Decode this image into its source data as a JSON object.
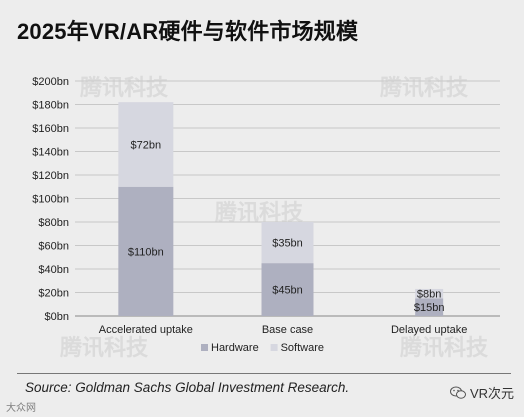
{
  "title": "2025年VR/AR硬件与软件市场规模",
  "source": "Source: Goldman Sachs Global Investment Research.",
  "wechat_label": "VR次元",
  "bottom_logo": "大众网",
  "watermark_text": "腾讯科技",
  "colors": {
    "hardware": "#aeb0c0",
    "software": "#d6d7e0",
    "grid": "#c8c8c8",
    "background": "#ededed"
  },
  "chart_data": {
    "type": "bar",
    "stacked": true,
    "categories": [
      "Accelerated uptake",
      "Base case",
      "Delayed uptake"
    ],
    "series": [
      {
        "name": "Hardware",
        "values": [
          110,
          45,
          15
        ],
        "labels": [
          "$110bn",
          "$45bn",
          "$15bn"
        ]
      },
      {
        "name": "Software",
        "values": [
          72,
          35,
          8
        ],
        "labels": [
          "$72bn",
          "$35bn",
          "$8bn"
        ]
      }
    ],
    "title": "2025年VR/AR硬件与软件市场规模",
    "xlabel": "",
    "ylabel": "",
    "ylim": [
      0,
      200
    ],
    "yticks": [
      0,
      20,
      40,
      60,
      80,
      100,
      120,
      140,
      160,
      180,
      200
    ],
    "ytick_labels": [
      "$0bn",
      "$20bn",
      "$40bn",
      "$60bn",
      "$80bn",
      "$100bn",
      "$120bn",
      "$140bn",
      "$160bn",
      "$180bn",
      "$200bn"
    ],
    "grid": true,
    "legend_position": "bottom"
  }
}
